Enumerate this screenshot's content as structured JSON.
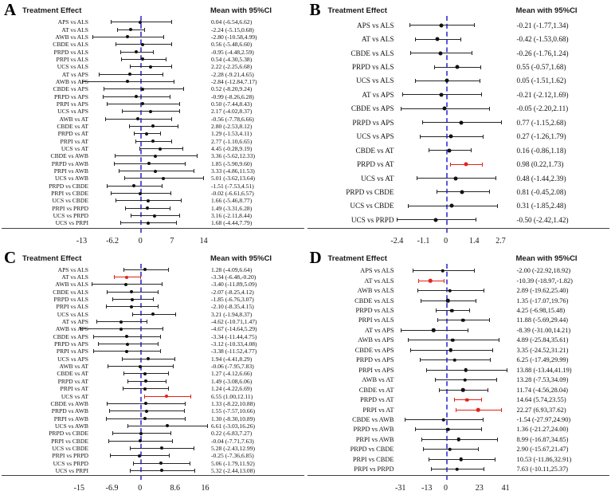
{
  "colors": {
    "ci_line": "#262626",
    "marker": "#111111",
    "significant": "#e22318",
    "zero_line": "#5a5add",
    "axis_line": "#404040"
  },
  "chart_data": [
    {
      "type": "forest",
      "panel": "A",
      "col_header_left": "Treatment Effect",
      "col_header_right": "Mean with 95%CI",
      "xlim": [
        -11.5,
        14.6
      ],
      "grid": false,
      "ticks": [
        {
          "v": -13,
          "label": "-13"
        },
        {
          "v": -6.2,
          "label": "-6.2"
        },
        {
          "v": 0,
          "label": "0"
        },
        {
          "v": 7,
          "label": "7"
        },
        {
          "v": 14,
          "label": "14"
        }
      ],
      "rows": [
        {
          "label": "APS vs ALS",
          "mean": 0.04,
          "lo": -6.54,
          "hi": 6.62,
          "text": "0.04 (-6.54,6.62)"
        },
        {
          "label": "AT vs ALS",
          "mean": -2.24,
          "lo": -5.15,
          "hi": 0.68,
          "text": "-2.24 (-5.15,0.68)"
        },
        {
          "label": "AWB vs ALS",
          "mean": -2.8,
          "lo": -10.58,
          "hi": 4.99,
          "text": "-2.80 (-10.58,4.99)"
        },
        {
          "label": "CBDE vs ALS",
          "mean": 0.56,
          "lo": -5.48,
          "hi": 6.6,
          "text": "0.56 (-5.48,6.60)"
        },
        {
          "label": "PRPD vs ALS",
          "mean": -0.95,
          "lo": -4.48,
          "hi": 2.59,
          "text": "-0.95 (-4.48,2.59)"
        },
        {
          "label": "PRPI vs ALS",
          "mean": 0.54,
          "lo": -4.3,
          "hi": 5.38,
          "text": "0.54 (-4.30,5.38)"
        },
        {
          "label": "UCS vs ALS",
          "mean": 2.22,
          "lo": -2.25,
          "hi": 6.68,
          "text": "2.22 (-2.25,6.68)"
        },
        {
          "label": "AT vs APS",
          "mean": -2.28,
          "lo": -9.21,
          "hi": 4.65,
          "text": "-2.28 (-9.21,4.65)"
        },
        {
          "label": "AWB vs APS",
          "mean": -2.84,
          "lo": -12.84,
          "hi": 7.17,
          "text": "-2.84 (-12.84,7.17)"
        },
        {
          "label": "CBDE vs APS",
          "mean": 0.52,
          "lo": -8.2,
          "hi": 9.24,
          "text": "0.52 (-8.20,9.24)"
        },
        {
          "label": "PRPD vs APS",
          "mean": -0.99,
          "lo": -8.26,
          "hi": 6.28,
          "text": "-0.99 (-8.26,6.28)"
        },
        {
          "label": "PRPI vs APS",
          "mean": 0.5,
          "lo": -7.44,
          "hi": 8.43,
          "text": "0.50 (-7.44,8.43)"
        },
        {
          "label": "UCS vs APS",
          "mean": 2.17,
          "lo": -4.02,
          "hi": 8.37,
          "text": "2.17 (-4.02,8.37)"
        },
        {
          "label": "AWB vs AT",
          "mean": -0.56,
          "lo": -7.78,
          "hi": 6.66,
          "text": "-0.56 (-7.78,6.66)"
        },
        {
          "label": "CBDE vs AT",
          "mean": 2.8,
          "lo": -2.53,
          "hi": 8.12,
          "text": "2.80 (-2.53,8.12)"
        },
        {
          "label": "PRPD vs AT",
          "mean": 1.29,
          "lo": -1.53,
          "hi": 4.11,
          "text": "1.29 (-1.53,4.11)"
        },
        {
          "label": "PRPI vs AT",
          "mean": 2.77,
          "lo": -1.1,
          "hi": 6.65,
          "text": "2.77 (-1.10,6.65)"
        },
        {
          "label": "UCS vs AT",
          "mean": 4.45,
          "lo": -0.28,
          "hi": 9.19,
          "text": "4.45 (-0.28,9.19)"
        },
        {
          "label": "CBDE vs AWB",
          "mean": 3.36,
          "lo": -5.62,
          "hi": 12.33,
          "text": "3.36 (-5.62,12.33)"
        },
        {
          "label": "PRPD vs AWB",
          "mean": 1.85,
          "lo": -5.9,
          "hi": 9.6,
          "text": "1.85 (-5.90,9.60)"
        },
        {
          "label": "PRPI vs AWB",
          "mean": 3.33,
          "lo": -4.86,
          "hi": 11.53,
          "text": "3.33 (-4.86,11.53)"
        },
        {
          "label": "UCS vs AWB",
          "mean": 5.01,
          "lo": -3.62,
          "hi": 13.64,
          "text": "5.01 (-3.62,13.64)"
        },
        {
          "label": "PRPD vs CBDE",
          "mean": -1.51,
          "lo": -7.53,
          "hi": 4.51,
          "text": "-1.51 (-7.53,4.51)"
        },
        {
          "label": "PRPI vs CBDE",
          "mean": -0.02,
          "lo": -6.61,
          "hi": 6.57,
          "text": "-0.02 (-6.61,6.57)"
        },
        {
          "label": "UCS vs CBDE",
          "mean": 1.66,
          "lo": -5.46,
          "hi": 8.77,
          "text": "1.66 (-5.46,8.77)"
        },
        {
          "label": "PRPI vs PRPD",
          "mean": 1.49,
          "lo": -3.31,
          "hi": 6.28,
          "text": "1.49 (-3.31,6.28)"
        },
        {
          "label": "UCS vs PRPD",
          "mean": 3.16,
          "lo": -2.11,
          "hi": 8.44,
          "text": "3.16 (-2.11,8.44)"
        },
        {
          "label": "UCS vs PRPI",
          "mean": 1.68,
          "lo": -4.44,
          "hi": 7.79,
          "text": "1.68 (-4.44,7.79)"
        }
      ]
    },
    {
      "type": "forest",
      "panel": "B",
      "col_header_left": "Treatment Effect",
      "col_header_right": "Mean with 95%CI",
      "xlim": [
        -2.55,
        3.25
      ],
      "grid": false,
      "ticks": [
        {
          "v": -2.4,
          "label": "-2.4"
        },
        {
          "v": -1.1,
          "label": "-1.1"
        },
        {
          "v": 0,
          "label": "0"
        },
        {
          "v": 1.4,
          "label": "1.4"
        },
        {
          "v": 2.7,
          "label": "2.7"
        }
      ],
      "rows": [
        {
          "label": "APS vs ALS",
          "mean": -0.21,
          "lo": -1.77,
          "hi": 1.34,
          "text": "-0.21 (-1.77,1.34)"
        },
        {
          "label": "AT vs ALS",
          "mean": -0.42,
          "lo": -1.53,
          "hi": 0.68,
          "text": "-0.42 (-1.53,0.68)"
        },
        {
          "label": "CBDE vs ALS",
          "mean": -0.26,
          "lo": -1.76,
          "hi": 1.24,
          "text": "-0.26 (-1.76,1.24)"
        },
        {
          "label": "PRPD vs ALS",
          "mean": 0.55,
          "lo": -0.57,
          "hi": 1.68,
          "text": "0.55 (-0.57,1.68)"
        },
        {
          "label": "UCS vs ALS",
          "mean": 0.05,
          "lo": -1.51,
          "hi": 1.62,
          "text": "0.05 (-1.51,1.62)"
        },
        {
          "label": "AT vs APS",
          "mean": -0.21,
          "lo": -2.12,
          "hi": 1.69,
          "text": "-0.21 (-2.12,1.69)"
        },
        {
          "label": "CBDE vs APS",
          "mean": -0.05,
          "lo": -2.2,
          "hi": 2.11,
          "text": "-0.05 (-2.20,2.11)"
        },
        {
          "label": "PRPD vs APS",
          "mean": 0.77,
          "lo": -1.15,
          "hi": 2.68,
          "text": "0.77 (-1.15,2.68)"
        },
        {
          "label": "UCS vs APS",
          "mean": 0.27,
          "lo": -1.26,
          "hi": 1.79,
          "text": "0.27 (-1.26,1.79)"
        },
        {
          "label": "CBDE vs AT",
          "mean": 0.16,
          "lo": -0.86,
          "hi": 1.18,
          "text": "0.16 (-0.86,1.18)"
        },
        {
          "label": "PRPD vs AT",
          "mean": 0.98,
          "lo": 0.22,
          "hi": 1.73,
          "text": "0.98 (0.22,1.73)",
          "sig": true
        },
        {
          "label": "UCS vs AT",
          "mean": 0.48,
          "lo": -1.44,
          "hi": 2.39,
          "text": "0.48 (-1.44,2.39)"
        },
        {
          "label": "PRPD vs CBDE",
          "mean": 0.81,
          "lo": -0.45,
          "hi": 2.08,
          "text": "0.81 (-0.45,2.08)"
        },
        {
          "label": "UCS vs CBDE",
          "mean": 0.31,
          "lo": -1.85,
          "hi": 2.48,
          "text": "0.31 (-1.85,2.48)"
        },
        {
          "label": "UCS vs PRPD",
          "mean": -0.5,
          "lo": -2.42,
          "hi": 1.42,
          "text": "-0.50 (-2.42,1.42)"
        }
      ]
    },
    {
      "type": "forest",
      "panel": "C",
      "col_header_left": "Treatment Effect",
      "col_header_right": "Mean with 95%CI",
      "xlim": [
        -12.7,
        16.3
      ],
      "grid": false,
      "ticks": [
        {
          "v": -15,
          "label": "-15"
        },
        {
          "v": -6.9,
          "label": "-6.9"
        },
        {
          "v": 0,
          "label": "0"
        },
        {
          "v": 8.6,
          "label": "8.6"
        },
        {
          "v": 16,
          "label": "16"
        }
      ],
      "rows": [
        {
          "label": "APS vs ALS",
          "mean": 1.28,
          "lo": -4.09,
          "hi": 6.64,
          "text": "1.28 (-4.09,6.64)"
        },
        {
          "label": "AT vs ALS",
          "mean": -3.34,
          "lo": -6.48,
          "hi": -0.2,
          "text": "-3.34 (-6.48,-0.20)",
          "sig": true
        },
        {
          "label": "AWB vs ALS",
          "mean": -3.4,
          "lo": -11.89,
          "hi": 5.09,
          "text": "-3.40 (-11.89,5.09)"
        },
        {
          "label": "CBDE vs ALS",
          "mean": -2.07,
          "lo": -8.25,
          "hi": 4.12,
          "text": "-2.07 (-8.25,4.12)"
        },
        {
          "label": "PRPD vs ALS",
          "mean": -1.85,
          "lo": -6.76,
          "hi": 3.07,
          "text": "-1.85 (-6.76,3.07)"
        },
        {
          "label": "PRPI vs ALS",
          "mean": -2.1,
          "lo": -8.35,
          "hi": 4.15,
          "text": "-2.10 (-8.35,4.15)"
        },
        {
          "label": "UCS vs ALS",
          "mean": 3.21,
          "lo": -1.94,
          "hi": 8.37,
          "text": "3.21 (-1.94,8.37)"
        },
        {
          "label": "AT vs APS",
          "mean": -4.62,
          "lo": -10.71,
          "hi": 1.47,
          "text": "-4.62 (-10.71,1.47)"
        },
        {
          "label": "AWB vs APS",
          "mean": -4.67,
          "lo": -14.64,
          "hi": 5.29,
          "text": "-4.67 (-14.64,5.29)"
        },
        {
          "label": "CBDE vs APS",
          "mean": -3.34,
          "lo": -11.44,
          "hi": 4.75,
          "text": "-3.34 (-11.44,4.75)"
        },
        {
          "label": "PRPD vs APS",
          "mean": -3.12,
          "lo": -10.33,
          "hi": 4.08,
          "text": "-3.12 (-10.33,4.08)"
        },
        {
          "label": "PRPI vs APS",
          "mean": -3.38,
          "lo": -11.52,
          "hi": 4.77,
          "text": "-3.38 (-11.52,4.77)"
        },
        {
          "label": "UCS vs APS",
          "mean": 1.94,
          "lo": -4.41,
          "hi": 8.29,
          "text": "1.94 (-4.41,8.29)"
        },
        {
          "label": "AWB vs AT",
          "mean": -0.06,
          "lo": -7.95,
          "hi": 7.83,
          "text": "-0.06 (-7.95,7.83)"
        },
        {
          "label": "CBDE vs AT",
          "mean": 1.27,
          "lo": -4.12,
          "hi": 6.66,
          "text": "1.27 (-4.12,6.66)"
        },
        {
          "label": "PRPD vs AT",
          "mean": 1.49,
          "lo": -3.08,
          "hi": 6.06,
          "text": "1.49 (-3.08,6.06)"
        },
        {
          "label": "PRPI vs AT",
          "mean": 1.24,
          "lo": -4.22,
          "hi": 6.69,
          "text": "1.24 (-4.22,6.69)"
        },
        {
          "label": "UCS vs AT",
          "mean": 6.55,
          "lo": 1.0,
          "hi": 12.11,
          "text": "6.55 (1.00,12.11)",
          "sig": true
        },
        {
          "label": "CBDE vs AWB",
          "mean": 1.33,
          "lo": -8.22,
          "hi": 10.88,
          "text": "1.33 (-8.22,10.88)"
        },
        {
          "label": "PRPD vs AWB",
          "mean": 1.55,
          "lo": -7.57,
          "hi": 10.66,
          "text": "1.55 (-7.57,10.66)"
        },
        {
          "label": "PRPI vs AWB",
          "mean": 1.3,
          "lo": -8.3,
          "hi": 10.89,
          "text": "1.30 (-8.30,10.89)"
        },
        {
          "label": "UCS vs AWB",
          "mean": 6.61,
          "lo": -3.03,
          "hi": 16.26,
          "text": "6.61 (-3.03,16.26)"
        },
        {
          "label": "PRPD vs CBDE",
          "mean": 0.22,
          "lo": -6.83,
          "hi": 7.27,
          "text": "0.22 (-6.83,7.27)"
        },
        {
          "label": "PRPI vs CBDE",
          "mean": -0.04,
          "lo": -7.71,
          "hi": 7.63,
          "text": "-0.04 (-7.71,7.63)"
        },
        {
          "label": "UCS vs CBDE",
          "mean": 5.28,
          "lo": -2.43,
          "hi": 12.99,
          "text": "5.28 (-2.43,12.99)"
        },
        {
          "label": "PRPI vs PRPD",
          "mean": -0.25,
          "lo": -7.36,
          "hi": 6.85,
          "text": "-0.25 (-7.36,6.85)"
        },
        {
          "label": "UCS vs PRPD",
          "mean": 5.06,
          "lo": -1.79,
          "hi": 11.92,
          "text": "5.06 (-1.79,11.92)"
        },
        {
          "label": "UCS vs PRPI",
          "mean": 5.32,
          "lo": -2.44,
          "hi": 13.08,
          "text": "5.32 (-2.44,13.08)"
        }
      ]
    },
    {
      "type": "forest",
      "panel": "D",
      "col_header_left": "Treatment Effect",
      "col_header_right": "Mean with 95%CI",
      "xlim": [
        -35.5,
        45.3
      ],
      "grid": false,
      "ticks": [
        {
          "v": -31,
          "label": "-31"
        },
        {
          "v": -13,
          "label": "-13"
        },
        {
          "v": 0,
          "label": "0"
        },
        {
          "v": 23,
          "label": "23"
        },
        {
          "v": 41,
          "label": "41"
        }
      ],
      "rows": [
        {
          "label": "APS vs ALS",
          "mean": -2.0,
          "lo": -22.92,
          "hi": 18.92,
          "text": "-2.00 (-22.92,18.92)"
        },
        {
          "label": "AT vs ALS",
          "mean": -10.39,
          "lo": -18.97,
          "hi": -1.82,
          "text": "-10.39 (-18.97,-1.82)",
          "sig": true
        },
        {
          "label": "AWB vs ALS",
          "mean": 2.89,
          "lo": -19.62,
          "hi": 25.4,
          "text": "2.89 (-19.62,25.40)"
        },
        {
          "label": "CBDE vs ALS",
          "mean": 1.35,
          "lo": -17.07,
          "hi": 19.76,
          "text": "1.35 (-17.07,19.76)"
        },
        {
          "label": "PRPD vs ALS",
          "mean": 4.25,
          "lo": -6.98,
          "hi": 15.48,
          "text": "4.25 (-6.98,15.48)"
        },
        {
          "label": "PRPI vs ALS",
          "mean": 11.88,
          "lo": -5.69,
          "hi": 29.44,
          "text": "11.88 (-5.69,29.44)"
        },
        {
          "label": "AT vs APS",
          "mean": -8.39,
          "lo": -31.0,
          "hi": 14.21,
          "text": "-8.39 (-31.00,14.21)"
        },
        {
          "label": "AWB vs APS",
          "mean": 4.89,
          "lo": -25.84,
          "hi": 35.61,
          "text": "4.89 (-25.84,35.61)"
        },
        {
          "label": "CBDE vs APS",
          "mean": 3.35,
          "lo": -24.52,
          "hi": 31.21,
          "text": "3.35 (-24.52,31.21)"
        },
        {
          "label": "PRPD vs APS",
          "mean": 6.25,
          "lo": -17.49,
          "hi": 29.99,
          "text": "6.25 (-17.49,29.99)"
        },
        {
          "label": "PRPI vs APS",
          "mean": 13.88,
          "lo": -13.44,
          "hi": 41.19,
          "text": "13.88 (-13.44,41.19)"
        },
        {
          "label": "AWB vs AT",
          "mean": 13.28,
          "lo": -7.53,
          "hi": 34.09,
          "text": "13.28 (-7.53,34.09)"
        },
        {
          "label": "CBDE vs AT",
          "mean": 11.74,
          "lo": -4.56,
          "hi": 28.04,
          "text": "11.74 (-4.56,28.04)"
        },
        {
          "label": "PRPD vs AT",
          "mean": 14.64,
          "lo": 5.74,
          "hi": 23.55,
          "text": "14.64 (5.74,23.55)",
          "sig": true
        },
        {
          "label": "PRPI vs AT",
          "mean": 22.27,
          "lo": 6.93,
          "hi": 37.62,
          "text": "22.27 (6.93,37.62)",
          "sig": true
        },
        {
          "label": "CBDE vs AWB",
          "mean": -1.54,
          "lo": -27.97,
          "hi": 24.9,
          "text": "-1.54 (-27.97,24.90)"
        },
        {
          "label": "PRPD vs AWB",
          "mean": 1.36,
          "lo": -21.27,
          "hi": 24.0,
          "text": "1.36 (-21.27,24.00)"
        },
        {
          "label": "PRPI vs AWB",
          "mean": 8.99,
          "lo": -16.87,
          "hi": 34.85,
          "text": "8.99 (-16.87,34.85)"
        },
        {
          "label": "PRPD vs CBDE",
          "mean": 2.9,
          "lo": -15.67,
          "hi": 21.47,
          "text": "2.90 (-15.67,21.47)"
        },
        {
          "label": "PRPI vs CBDE",
          "mean": 10.53,
          "lo": -11.86,
          "hi": 32.91,
          "text": "10.53 (-11.86,32.91)"
        },
        {
          "label": "PRPI vs PRPD",
          "mean": 7.63,
          "lo": -10.11,
          "hi": 25.37,
          "text": "7.63 (-10.11,25.37)"
        }
      ]
    }
  ]
}
